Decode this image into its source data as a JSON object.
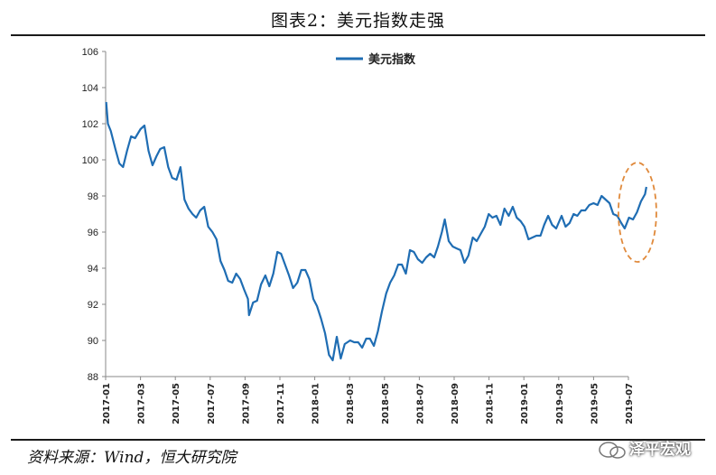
{
  "header": {
    "title": "图表2：美元指数走强"
  },
  "footer": {
    "source": "资料来源：Wind，恒大研究院",
    "watermark": "泽平宏观"
  },
  "colors": {
    "line": "#1f6db3",
    "highlight": "#e08a3c",
    "axis": "#888888"
  },
  "chart_data": {
    "type": "line",
    "title": "",
    "xlabel": "",
    "ylabel": "",
    "ylim": [
      88,
      106
    ],
    "yticks": [
      88,
      90,
      92,
      94,
      96,
      98,
      100,
      102,
      104,
      106
    ],
    "xticks": [
      "2017-01",
      "2017-03",
      "2017-05",
      "2017-07",
      "2017-09",
      "2017-11",
      "2018-01",
      "2018-03",
      "2018-05",
      "2018-07",
      "2018-09",
      "2018-11",
      "2019-01",
      "2019-03",
      "2019-05",
      "2019-07"
    ],
    "xrange": [
      "2017-01",
      "2019-08"
    ],
    "legend": {
      "position": "top-center"
    },
    "series": [
      {
        "name": "美元指数",
        "x": [
          "2017-01-02",
          "2017-01-05",
          "2017-01-10",
          "2017-01-18",
          "2017-01-25",
          "2017-02-01",
          "2017-02-08",
          "2017-02-15",
          "2017-02-22",
          "2017-03-01",
          "2017-03-08",
          "2017-03-15",
          "2017-03-22",
          "2017-03-29",
          "2017-04-05",
          "2017-04-12",
          "2017-04-19",
          "2017-04-26",
          "2017-05-03",
          "2017-05-10",
          "2017-05-17",
          "2017-05-24",
          "2017-05-31",
          "2017-06-07",
          "2017-06-14",
          "2017-06-21",
          "2017-06-28",
          "2017-07-05",
          "2017-07-12",
          "2017-07-19",
          "2017-07-26",
          "2017-08-02",
          "2017-08-09",
          "2017-08-16",
          "2017-08-23",
          "2017-08-30",
          "2017-09-06",
          "2017-09-08",
          "2017-09-15",
          "2017-09-22",
          "2017-09-29",
          "2017-10-06",
          "2017-10-13",
          "2017-10-20",
          "2017-10-27",
          "2017-11-03",
          "2017-11-10",
          "2017-11-17",
          "2017-11-24",
          "2017-12-01",
          "2017-12-08",
          "2017-12-15",
          "2017-12-22",
          "2017-12-29",
          "2018-01-05",
          "2018-01-12",
          "2018-01-19",
          "2018-01-26",
          "2018-02-02",
          "2018-02-09",
          "2018-02-16",
          "2018-02-23",
          "2018-03-02",
          "2018-03-09",
          "2018-03-16",
          "2018-03-23",
          "2018-03-30",
          "2018-04-06",
          "2018-04-13",
          "2018-04-20",
          "2018-04-27",
          "2018-05-04",
          "2018-05-11",
          "2018-05-18",
          "2018-05-25",
          "2018-06-01",
          "2018-06-08",
          "2018-06-15",
          "2018-06-22",
          "2018-06-29",
          "2018-07-06",
          "2018-07-13",
          "2018-07-20",
          "2018-07-27",
          "2018-08-03",
          "2018-08-10",
          "2018-08-15",
          "2018-08-22",
          "2018-08-29",
          "2018-09-05",
          "2018-09-12",
          "2018-09-19",
          "2018-09-26",
          "2018-10-03",
          "2018-10-10",
          "2018-10-17",
          "2018-10-24",
          "2018-10-31",
          "2018-11-07",
          "2018-11-14",
          "2018-11-21",
          "2018-11-28",
          "2018-12-05",
          "2018-12-12",
          "2018-12-19",
          "2018-12-26",
          "2019-01-02",
          "2019-01-09",
          "2019-01-16",
          "2019-01-23",
          "2019-01-30",
          "2019-02-06",
          "2019-02-13",
          "2019-02-20",
          "2019-02-27",
          "2019-03-06",
          "2019-03-13",
          "2019-03-20",
          "2019-03-27",
          "2019-04-03",
          "2019-04-10",
          "2019-04-17",
          "2019-04-24",
          "2019-05-01",
          "2019-05-08",
          "2019-05-15",
          "2019-05-22",
          "2019-05-29",
          "2019-06-05",
          "2019-06-12",
          "2019-06-19",
          "2019-06-25",
          "2019-07-02",
          "2019-07-09",
          "2019-07-16",
          "2019-07-23",
          "2019-07-30",
          "2019-08-02"
        ],
        "values": [
          103.2,
          102.0,
          101.6,
          100.6,
          99.8,
          99.6,
          100.5,
          101.3,
          101.2,
          101.7,
          101.9,
          100.5,
          99.7,
          100.2,
          100.6,
          100.7,
          99.6,
          99.0,
          98.9,
          99.6,
          97.8,
          97.3,
          97.0,
          96.8,
          97.2,
          97.4,
          96.3,
          96.0,
          95.6,
          94.4,
          93.9,
          93.3,
          93.2,
          93.7,
          93.4,
          92.8,
          92.3,
          91.4,
          92.1,
          92.2,
          93.1,
          93.6,
          93.0,
          93.7,
          94.9,
          94.8,
          94.2,
          93.6,
          92.9,
          93.2,
          93.9,
          93.9,
          93.4,
          92.3,
          91.9,
          91.2,
          90.4,
          89.2,
          88.9,
          90.2,
          89.0,
          89.8,
          90.0,
          89.9,
          89.9,
          89.6,
          90.1,
          90.1,
          89.7,
          90.5,
          91.6,
          92.6,
          93.2,
          93.6,
          94.2,
          94.2,
          93.7,
          95.0,
          94.9,
          94.5,
          94.3,
          94.6,
          94.8,
          94.6,
          95.2,
          96.0,
          96.7,
          95.5,
          95.2,
          95.1,
          95.0,
          94.3,
          94.7,
          95.7,
          95.5,
          95.9,
          96.3,
          97.0,
          96.8,
          96.9,
          96.4,
          97.3,
          96.9,
          97.4,
          96.8,
          96.6,
          96.3,
          95.6,
          95.7,
          95.8,
          95.8,
          96.4,
          96.9,
          96.4,
          96.2,
          96.9,
          96.3,
          96.5,
          97.0,
          96.9,
          97.2,
          97.2,
          97.5,
          97.6,
          97.5,
          98.0,
          97.8,
          97.6,
          97.0,
          96.9,
          96.5,
          96.2,
          96.8,
          96.7,
          97.1,
          97.7,
          98.1,
          98.5
        ]
      }
    ]
  }
}
